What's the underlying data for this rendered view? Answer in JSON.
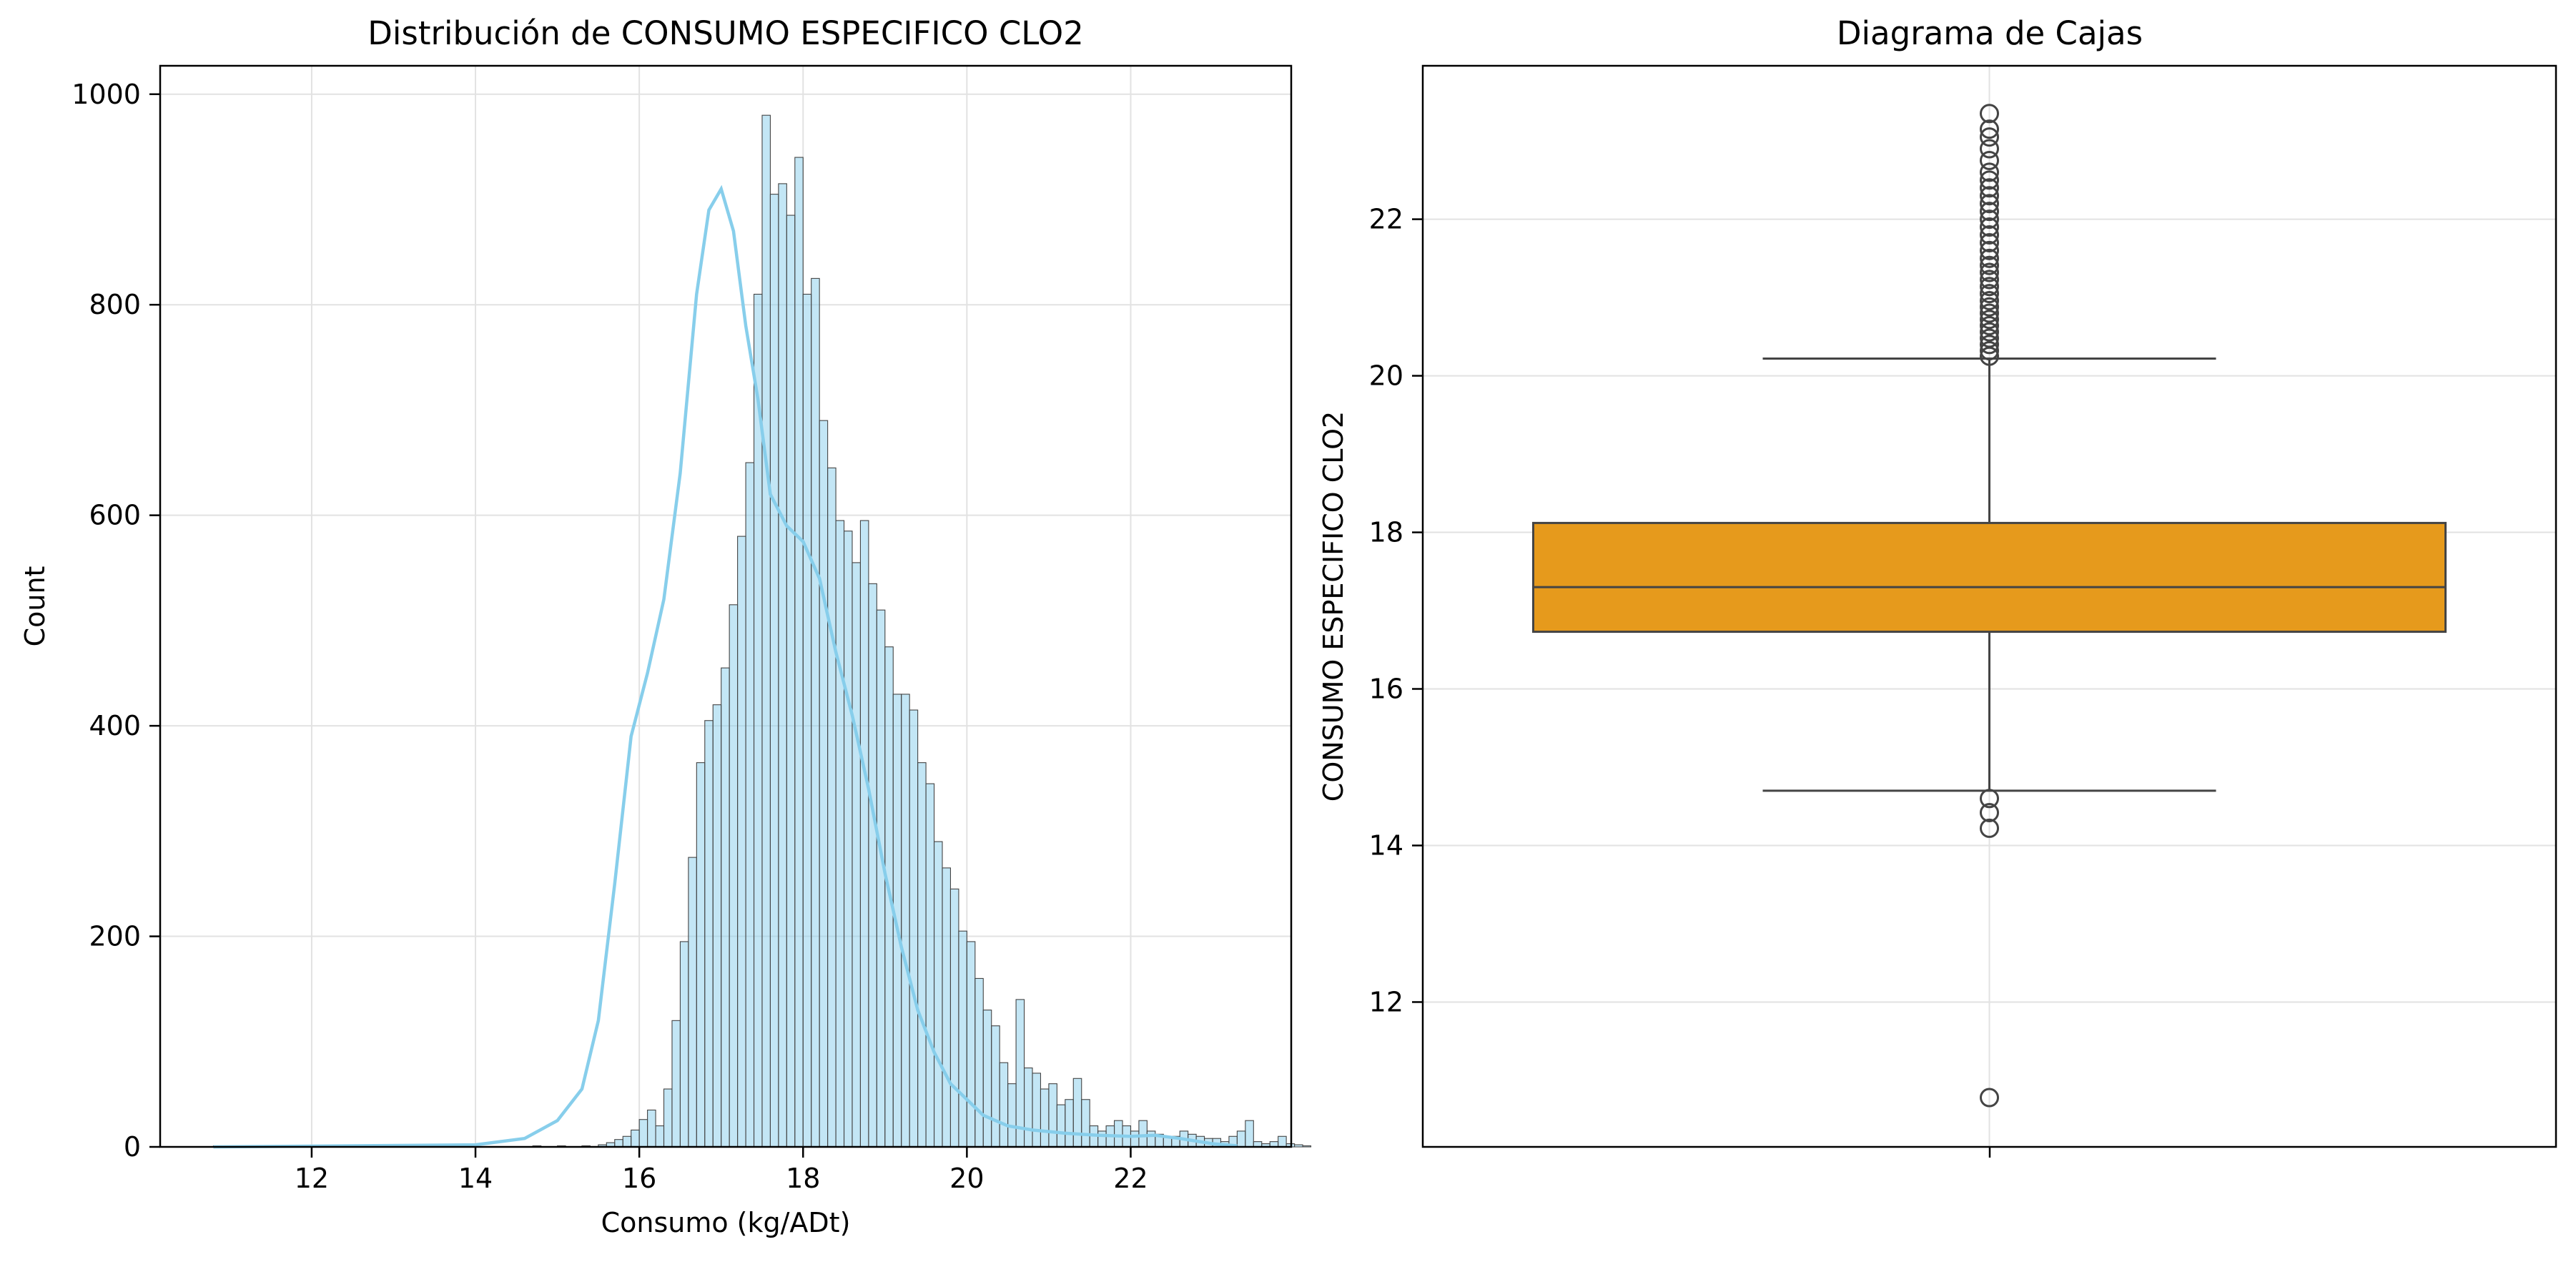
{
  "chart_data": [
    {
      "type": "bar",
      "subtype": "histogram-with-kde",
      "title": "Distribución de CONSUMO ESPECIFICO CLO2",
      "xlabel": "Consumo (kg/ADt)",
      "ylabel": "Count",
      "xlim": [
        10.15,
        23.96
      ],
      "ylim": [
        0,
        1027
      ],
      "xticks": [
        12,
        14,
        16,
        18,
        20,
        22
      ],
      "yticks": [
        0,
        200,
        400,
        600,
        800,
        1000
      ],
      "grid": true,
      "bar_color": "#87CEEB",
      "bar_edge_color": "#444444",
      "kde_color": "#87CEEB",
      "bin_start": 10.8,
      "bin_width": 0.1,
      "counts": [
        1,
        0,
        0,
        1,
        0,
        0,
        0,
        0,
        0,
        0,
        0,
        0,
        1,
        0,
        0,
        0,
        0,
        0,
        0,
        0,
        0,
        0,
        0,
        0,
        0,
        0,
        0,
        0,
        0,
        0,
        0,
        0,
        0,
        0,
        0,
        0,
        0,
        0,
        0,
        1,
        0,
        0,
        1,
        0,
        0,
        1,
        0,
        2,
        4,
        7,
        10,
        16,
        26,
        35,
        20,
        55,
        120,
        195,
        275,
        365,
        405,
        420,
        455,
        515,
        580,
        650,
        810,
        980,
        905,
        915,
        885,
        940,
        810,
        825,
        690,
        645,
        595,
        585,
        555,
        595,
        535,
        510,
        475,
        430,
        430,
        415,
        365,
        345,
        290,
        265,
        245,
        205,
        195,
        160,
        130,
        115,
        80,
        60,
        140,
        75,
        70,
        55,
        60,
        40,
        45,
        65,
        45,
        20,
        15,
        20,
        25,
        20,
        15,
        25,
        15,
        12,
        10,
        10,
        15,
        12,
        10,
        8,
        8,
        5,
        10,
        15,
        25,
        5,
        3,
        5,
        10,
        3,
        2,
        1
      ],
      "kde": {
        "x": [
          10.8,
          14.0,
          14.6,
          15.0,
          15.3,
          15.5,
          15.7,
          15.9,
          16.1,
          16.3,
          16.5,
          16.7,
          16.85,
          17.0,
          17.15,
          17.3,
          17.45,
          17.6,
          17.8,
          18.0,
          18.2,
          18.4,
          18.6,
          18.8,
          19.0,
          19.2,
          19.4,
          19.6,
          19.8,
          20.0,
          20.2,
          20.5,
          20.8,
          21.2,
          21.6,
          22.0,
          22.3,
          22.6,
          23.0,
          23.3
        ],
        "y": [
          0,
          2,
          8,
          25,
          55,
          120,
          250,
          390,
          450,
          520,
          640,
          810,
          890,
          910,
          870,
          780,
          710,
          620,
          590,
          575,
          540,
          470,
          410,
          340,
          260,
          190,
          130,
          90,
          60,
          45,
          30,
          20,
          16,
          13,
          11,
          10,
          11,
          8,
          3,
          1
        ]
      }
    },
    {
      "type": "box",
      "title": "Diagrama de Cajas",
      "xlabel": "",
      "ylabel": "CONSUMO ESPECIFICO CLO2",
      "ylim": [
        10.15,
        23.96
      ],
      "yticks": [
        12,
        14,
        16,
        18,
        20,
        22
      ],
      "grid": true,
      "box_color": "#E69A1C",
      "line_color": "#444444",
      "stats": {
        "q1": 16.73,
        "median": 17.3,
        "q3": 18.12,
        "whisker_low": 14.7,
        "whisker_high": 20.22
      },
      "outliers": [
        10.78,
        14.22,
        14.42,
        14.6,
        20.25,
        20.32,
        20.4,
        20.48,
        20.56,
        20.64,
        20.72,
        20.8,
        20.88,
        20.96,
        21.05,
        21.14,
        21.23,
        21.32,
        21.41,
        21.5,
        21.6,
        21.7,
        21.8,
        21.9,
        22.0,
        22.1,
        22.2,
        22.3,
        22.4,
        22.5,
        22.6,
        22.75,
        22.9,
        23.05,
        23.15,
        23.35
      ]
    }
  ]
}
